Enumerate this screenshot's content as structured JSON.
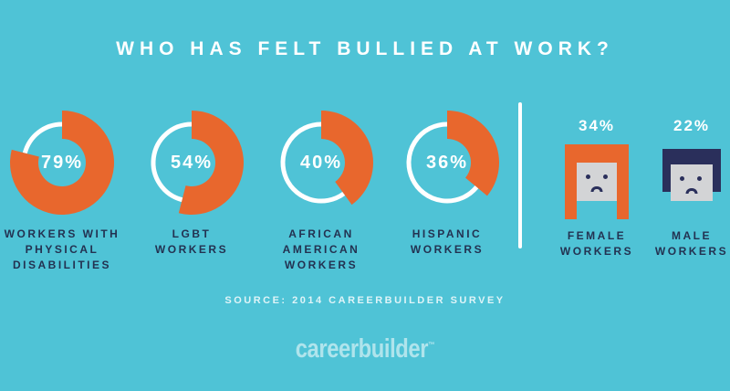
{
  "title": "WHO HAS FELT BULLIED AT WORK?",
  "colors": {
    "background": "#4FC3D6",
    "accent_orange": "#E8672D",
    "navy": "#2A2F5B",
    "navy_text": "#233251",
    "face_gray": "#D3D4D6",
    "white": "#FFFFFF"
  },
  "chart_data": {
    "type": "pie",
    "subtype": "donut-and-pictogram-infographic",
    "title": "WHO HAS FELT BULLIED AT WORK?",
    "unit": "percent",
    "categories": [
      "Workers with physical disabilities",
      "LGBT workers",
      "African American workers",
      "Hispanic workers",
      "Female workers",
      "Male workers"
    ],
    "values": [
      79,
      54,
      40,
      36,
      34,
      22
    ],
    "legend_position": "none",
    "source": "2014 CareerBuilder survey"
  },
  "donuts": [
    {
      "pct": 79,
      "pct_label": "79%",
      "label": "WORKERS WITH\nPHYSICAL\nDISABILITIES"
    },
    {
      "pct": 54,
      "pct_label": "54%",
      "label": "LGBT\nWORKERS"
    },
    {
      "pct": 40,
      "pct_label": "40%",
      "label": "AFRICAN\nAMERICAN\nWORKERS"
    },
    {
      "pct": 36,
      "pct_label": "36%",
      "label": "HISPANIC\nWORKERS"
    }
  ],
  "persons": [
    {
      "pct": 34,
      "pct_label": "34%",
      "label": "FEMALE\nWORKERS",
      "gender": "female"
    },
    {
      "pct": 22,
      "pct_label": "22%",
      "label": "MALE\nWORKERS",
      "gender": "male"
    }
  ],
  "source_line": "SOURCE: 2014 CAREERBUILDER SURVEY",
  "logo": {
    "text": "careerbuilder",
    "trademark": "™"
  }
}
